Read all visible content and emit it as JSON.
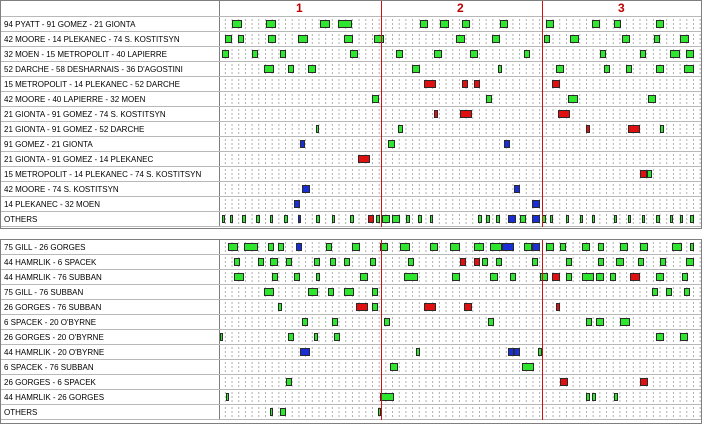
{
  "periods": [
    "1",
    "2",
    "3"
  ],
  "colors": {
    "even_strength": "#2ee62e",
    "power_play": "#e01010",
    "short_handed": "#1a2ed8",
    "period_line": "#d01010"
  },
  "forwards": {
    "rows": [
      {
        "label": "94 PYATT - 91 GOMEZ - 21 GIONTA",
        "shifts": [
          [
            12,
            22,
            "g"
          ],
          [
            46,
            56,
            "g"
          ],
          [
            100,
            110,
            "g"
          ],
          [
            118,
            132,
            "g"
          ],
          [
            200,
            208,
            "g"
          ],
          [
            220,
            229,
            "g"
          ],
          [
            242,
            250,
            "g"
          ],
          [
            280,
            288,
            "g"
          ],
          [
            326,
            334,
            "g"
          ],
          [
            372,
            380,
            "g"
          ],
          [
            394,
            401,
            "g"
          ],
          [
            436,
            444,
            "g"
          ]
        ]
      },
      {
        "label": "42 MOORE - 14 PLEKANEC - 74 S. KOSTITSYN",
        "shifts": [
          [
            5,
            12,
            "g"
          ],
          [
            18,
            24,
            "g"
          ],
          [
            48,
            56,
            "g"
          ],
          [
            78,
            88,
            "g"
          ],
          [
            124,
            133,
            "g"
          ],
          [
            154,
            164,
            "g"
          ],
          [
            236,
            245,
            "g"
          ],
          [
            272,
            280,
            "g"
          ],
          [
            324,
            330,
            "g"
          ],
          [
            350,
            359,
            "g"
          ],
          [
            402,
            410,
            "g"
          ],
          [
            434,
            440,
            "g"
          ],
          [
            460,
            469,
            "g"
          ]
        ]
      },
      {
        "label": "32 MOEN - 15 METROPOLIT - 40 LAPIERRE",
        "shifts": [
          [
            2,
            9,
            "g"
          ],
          [
            32,
            38,
            "g"
          ],
          [
            60,
            66,
            "g"
          ],
          [
            130,
            138,
            "g"
          ],
          [
            176,
            183,
            "g"
          ],
          [
            214,
            222,
            "g"
          ],
          [
            250,
            258,
            "g"
          ],
          [
            304,
            310,
            "g"
          ],
          [
            380,
            386,
            "g"
          ],
          [
            420,
            426,
            "g"
          ],
          [
            450,
            460,
            "g"
          ],
          [
            466,
            474,
            "g"
          ]
        ]
      },
      {
        "label": "52 DARCHE - 58 DESHARNAIS - 36 D'AGOSTINI",
        "shifts": [
          [
            44,
            54,
            "g"
          ],
          [
            68,
            74,
            "g"
          ],
          [
            88,
            96,
            "g"
          ],
          [
            192,
            200,
            "g"
          ],
          [
            278,
            282,
            "g"
          ],
          [
            336,
            344,
            "g"
          ],
          [
            384,
            390,
            "g"
          ],
          [
            406,
            412,
            "g"
          ],
          [
            436,
            444,
            "g"
          ],
          [
            464,
            474,
            "g"
          ]
        ]
      },
      {
        "label": "15 METROPOLIT - 14 PLEKANEC - 52 DARCHE",
        "shifts": [
          [
            204,
            216,
            "r"
          ],
          [
            242,
            248,
            "r"
          ],
          [
            254,
            260,
            "r"
          ],
          [
            332,
            340,
            "r"
          ]
        ]
      },
      {
        "label": "42 MOORE - 40 LAPIERRE - 32 MOEN",
        "shifts": [
          [
            152,
            159,
            "g"
          ],
          [
            266,
            272,
            "g"
          ],
          [
            348,
            358,
            "g"
          ],
          [
            428,
            436,
            "g"
          ]
        ]
      },
      {
        "label": "21 GIONTA - 91 GOMEZ - 74 S. KOSTITSYN",
        "shifts": [
          [
            214,
            218,
            "r"
          ],
          [
            240,
            252,
            "r"
          ],
          [
            338,
            350,
            "r"
          ]
        ]
      },
      {
        "label": "21 GIONTA - 91 GOMEZ - 52 DARCHE",
        "shifts": [
          [
            96,
            99,
            "g"
          ],
          [
            178,
            183,
            "g"
          ],
          [
            366,
            370,
            "r"
          ],
          [
            408,
            420,
            "r"
          ],
          [
            440,
            444,
            "g"
          ]
        ]
      },
      {
        "label": "91 GOMEZ - 21 GIONTA",
        "shifts": [
          [
            80,
            85,
            "b"
          ],
          [
            168,
            175,
            "g"
          ],
          [
            284,
            290,
            "b"
          ]
        ]
      },
      {
        "label": "21 GIONTA - 91 GOMEZ - 14 PLEKANEC",
        "shifts": [
          [
            138,
            150,
            "r"
          ]
        ]
      },
      {
        "label": "15 METROPOLIT - 14 PLEKANEC - 74 S. KOSTITSYN",
        "shifts": [
          [
            420,
            427,
            "r"
          ],
          [
            427,
            432,
            "g"
          ]
        ]
      },
      {
        "label": "42 MOORE - 74 S. KOSTITSYN",
        "shifts": [
          [
            82,
            90,
            "b"
          ],
          [
            294,
            300,
            "b"
          ]
        ]
      },
      {
        "label": "14 PLEKANEC - 32 MOEN",
        "shifts": [
          [
            74,
            80,
            "b"
          ],
          [
            312,
            320,
            "b"
          ]
        ]
      },
      {
        "label": "OTHERS",
        "shifts": [
          [
            2,
            5,
            "g"
          ],
          [
            10,
            13,
            "g"
          ],
          [
            22,
            26,
            "g"
          ],
          [
            36,
            40,
            "g"
          ],
          [
            50,
            52,
            "g"
          ],
          [
            64,
            68,
            "g"
          ],
          [
            78,
            80,
            "b"
          ],
          [
            96,
            100,
            "g"
          ],
          [
            112,
            114,
            "g"
          ],
          [
            130,
            134,
            "g"
          ],
          [
            148,
            154,
            "r"
          ],
          [
            156,
            160,
            "g"
          ],
          [
            162,
            170,
            "g"
          ],
          [
            172,
            180,
            "g"
          ],
          [
            186,
            190,
            "g"
          ],
          [
            198,
            202,
            "g"
          ],
          [
            210,
            213,
            "g"
          ],
          [
            258,
            262,
            "g"
          ],
          [
            266,
            270,
            "g"
          ],
          [
            276,
            280,
            "g"
          ],
          [
            288,
            296,
            "b"
          ],
          [
            300,
            306,
            "g"
          ],
          [
            312,
            320,
            "b"
          ],
          [
            322,
            326,
            "g"
          ],
          [
            330,
            332,
            "g"
          ],
          [
            346,
            348,
            "g"
          ],
          [
            360,
            362,
            "g"
          ],
          [
            372,
            374,
            "g"
          ],
          [
            394,
            396,
            "g"
          ],
          [
            408,
            410,
            "g"
          ],
          [
            422,
            424,
            "g"
          ],
          [
            436,
            440,
            "g"
          ],
          [
            450,
            452,
            "g"
          ],
          [
            460,
            462,
            "g"
          ],
          [
            470,
            474,
            "g"
          ]
        ]
      }
    ]
  },
  "defense": {
    "rows": [
      {
        "label": "75 GILL - 26 GORGES",
        "shifts": [
          [
            8,
            18,
            "g"
          ],
          [
            24,
            38,
            "g"
          ],
          [
            48,
            54,
            "g"
          ],
          [
            58,
            64,
            "g"
          ],
          [
            76,
            82,
            "b"
          ],
          [
            106,
            112,
            "g"
          ],
          [
            132,
            140,
            "g"
          ],
          [
            160,
            168,
            "g"
          ],
          [
            180,
            190,
            "g"
          ],
          [
            210,
            218,
            "g"
          ],
          [
            230,
            240,
            "g"
          ],
          [
            254,
            264,
            "g"
          ],
          [
            270,
            282,
            "g"
          ],
          [
            282,
            294,
            "b"
          ],
          [
            304,
            312,
            "g"
          ],
          [
            312,
            320,
            "b"
          ],
          [
            326,
            334,
            "g"
          ],
          [
            340,
            346,
            "g"
          ],
          [
            362,
            370,
            "g"
          ],
          [
            378,
            384,
            "g"
          ],
          [
            400,
            408,
            "g"
          ],
          [
            420,
            428,
            "g"
          ],
          [
            452,
            462,
            "g"
          ],
          [
            470,
            474,
            "g"
          ]
        ]
      },
      {
        "label": "44 HAMRLIK - 6 SPACEK",
        "shifts": [
          [
            14,
            20,
            "g"
          ],
          [
            38,
            44,
            "g"
          ],
          [
            50,
            58,
            "g"
          ],
          [
            66,
            72,
            "g"
          ],
          [
            94,
            100,
            "g"
          ],
          [
            110,
            116,
            "g"
          ],
          [
            124,
            130,
            "g"
          ],
          [
            150,
            156,
            "g"
          ],
          [
            188,
            194,
            "g"
          ],
          [
            240,
            246,
            "r"
          ],
          [
            254,
            260,
            "r"
          ],
          [
            262,
            268,
            "g"
          ],
          [
            276,
            282,
            "g"
          ],
          [
            312,
            318,
            "g"
          ],
          [
            346,
            352,
            "g"
          ],
          [
            378,
            384,
            "g"
          ],
          [
            396,
            404,
            "g"
          ],
          [
            418,
            424,
            "g"
          ],
          [
            440,
            446,
            "g"
          ],
          [
            466,
            474,
            "g"
          ]
        ]
      },
      {
        "label": "44 HAMRLIK - 76 SUBBAN",
        "shifts": [
          [
            14,
            24,
            "g"
          ],
          [
            52,
            58,
            "g"
          ],
          [
            74,
            80,
            "g"
          ],
          [
            96,
            100,
            "g"
          ],
          [
            140,
            148,
            "g"
          ],
          [
            184,
            198,
            "g"
          ],
          [
            232,
            240,
            "g"
          ],
          [
            270,
            278,
            "g"
          ],
          [
            290,
            296,
            "g"
          ],
          [
            320,
            328,
            "g"
          ],
          [
            332,
            340,
            "r"
          ],
          [
            346,
            352,
            "g"
          ],
          [
            362,
            374,
            "g"
          ],
          [
            376,
            384,
            "g"
          ],
          [
            390,
            396,
            "g"
          ],
          [
            410,
            420,
            "r"
          ],
          [
            436,
            444,
            "g"
          ],
          [
            462,
            468,
            "g"
          ]
        ]
      },
      {
        "label": "75 GILL - 76 SUBBAN",
        "shifts": [
          [
            44,
            54,
            "g"
          ],
          [
            88,
            98,
            "g"
          ],
          [
            108,
            114,
            "g"
          ],
          [
            124,
            134,
            "g"
          ],
          [
            152,
            158,
            "g"
          ],
          [
            432,
            438,
            "g"
          ],
          [
            446,
            452,
            "g"
          ],
          [
            464,
            470,
            "g"
          ]
        ]
      },
      {
        "label": "26 GORGES - 76 SUBBAN",
        "shifts": [
          [
            58,
            62,
            "g"
          ],
          [
            136,
            148,
            "r"
          ],
          [
            152,
            158,
            "g"
          ],
          [
            204,
            216,
            "r"
          ],
          [
            244,
            252,
            "r"
          ],
          [
            336,
            340,
            "r"
          ]
        ]
      },
      {
        "label": "6 SPACEK - 20 O'BYRNE",
        "shifts": [
          [
            82,
            88,
            "g"
          ],
          [
            112,
            118,
            "g"
          ],
          [
            164,
            170,
            "g"
          ],
          [
            268,
            274,
            "g"
          ],
          [
            366,
            372,
            "g"
          ],
          [
            376,
            384,
            "g"
          ],
          [
            400,
            410,
            "g"
          ]
        ]
      },
      {
        "label": "26 GORGES - 20 O'BYRNE",
        "shifts": [
          [
            0,
            3,
            "g"
          ],
          [
            68,
            74,
            "g"
          ],
          [
            94,
            98,
            "g"
          ],
          [
            114,
            120,
            "g"
          ],
          [
            436,
            444,
            "g"
          ],
          [
            460,
            468,
            "g"
          ]
        ]
      },
      {
        "label": "44 HAMRLIK - 20 O'BYRNE",
        "shifts": [
          [
            80,
            90,
            "b"
          ],
          [
            196,
            200,
            "g"
          ],
          [
            288,
            294,
            "b"
          ],
          [
            294,
            300,
            "b"
          ],
          [
            318,
            322,
            "g"
          ]
        ]
      },
      {
        "label": "6 SPACEK - 76 SUBBAN",
        "shifts": [
          [
            170,
            178,
            "g"
          ],
          [
            302,
            314,
            "g"
          ]
        ]
      },
      {
        "label": "26 GORGES - 6 SPACEK",
        "shifts": [
          [
            66,
            72,
            "g"
          ],
          [
            340,
            348,
            "r"
          ],
          [
            420,
            428,
            "r"
          ]
        ]
      },
      {
        "label": "44 HAMRLIK - 26 GORGES",
        "shifts": [
          [
            6,
            9,
            "g"
          ],
          [
            160,
            174,
            "g"
          ],
          [
            366,
            370,
            "g"
          ],
          [
            372,
            376,
            "g"
          ],
          [
            394,
            398,
            "g"
          ]
        ]
      },
      {
        "label": "OTHERS",
        "shifts": [
          [
            50,
            53,
            "g"
          ],
          [
            60,
            66,
            "g"
          ],
          [
            158,
            161,
            "g"
          ]
        ]
      }
    ]
  }
}
